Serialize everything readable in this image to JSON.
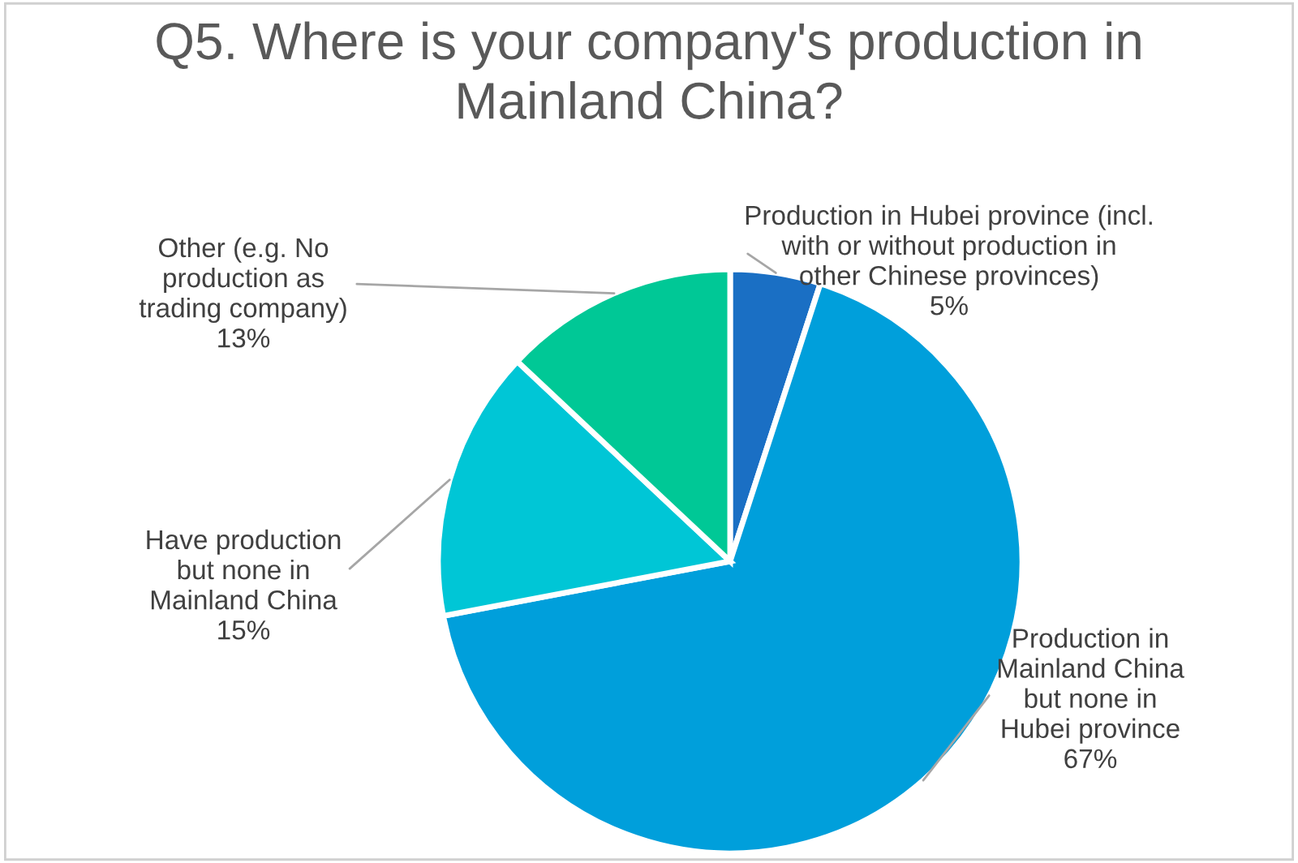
{
  "chart_data": {
    "type": "pie",
    "title": "Q5. Where is your company's production in\nMainland China?",
    "categories": [
      "Production in Hubei province (incl.\nwith or without production in\nother Chinese provinces)",
      "Production in\nMainland China\nbut none in\nHubei province",
      "Have production\nbut none in\nMainland China",
      "Other (e.g. No\nproduction as\ntrading company)"
    ],
    "values": [
      5,
      67,
      15,
      13
    ],
    "value_labels": [
      "5%",
      "67%",
      "15%",
      "13%"
    ],
    "colors": [
      "#1a6fc4",
      "#009fdb",
      "#00c6d6",
      "#00c896"
    ],
    "legend": false
  }
}
